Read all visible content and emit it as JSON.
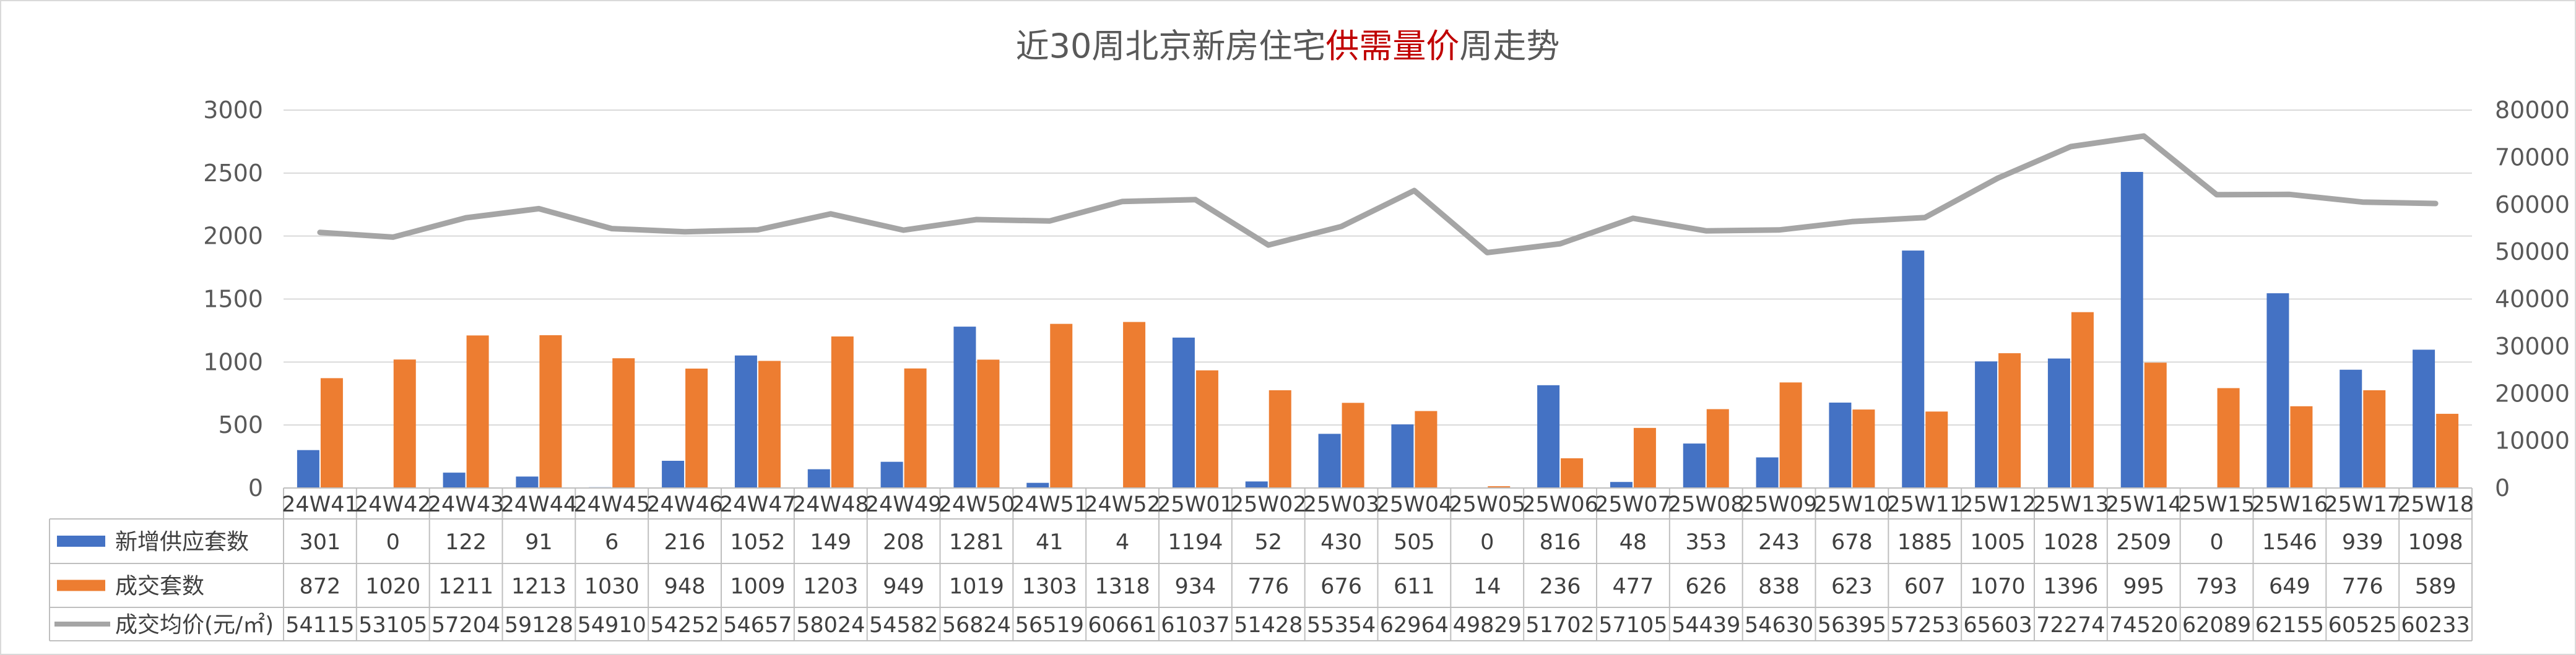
{
  "chart_data": {
    "type": "bar",
    "title_parts": [
      "近30周北京新房住宅",
      "供需量价",
      "周走势"
    ],
    "categories": [
      "24W41",
      "24W42",
      "24W43",
      "24W44",
      "24W45",
      "24W46",
      "24W47",
      "24W48",
      "24W49",
      "24W50",
      "24W51",
      "24W52",
      "25W01",
      "25W02",
      "25W03",
      "25W04",
      "25W05",
      "25W06",
      "25W07",
      "25W08",
      "25W09",
      "25W10",
      "25W11",
      "25W12",
      "25W13",
      "25W14",
      "25W15",
      "25W16",
      "25W17",
      "25W18"
    ],
    "series": [
      {
        "name": "新增供应套数",
        "type": "bar",
        "axis": "left",
        "color": "#4472c4",
        "values": [
          301,
          0,
          122,
          91,
          6,
          216,
          1052,
          149,
          208,
          1281,
          41,
          4,
          1194,
          52,
          430,
          505,
          0,
          816,
          48,
          353,
          243,
          678,
          1885,
          1005,
          1028,
          2509,
          0,
          1546,
          939,
          1098
        ]
      },
      {
        "name": "成交套数",
        "type": "bar",
        "axis": "left",
        "color": "#ed7d31",
        "values": [
          872,
          1020,
          1211,
          1213,
          1030,
          948,
          1009,
          1203,
          949,
          1019,
          1303,
          1318,
          934,
          776,
          676,
          611,
          14,
          236,
          477,
          626,
          838,
          623,
          607,
          1070,
          1396,
          995,
          793,
          649,
          776,
          589
        ]
      },
      {
        "name": "成交均价(元/㎡)",
        "type": "line",
        "axis": "right",
        "color": "#a5a5a5",
        "values": [
          54115,
          53105,
          57204,
          59128,
          54910,
          54252,
          54657,
          58024,
          54582,
          56824,
          56519,
          60661,
          61037,
          51428,
          55354,
          62964,
          49829,
          51702,
          57105,
          54439,
          54630,
          56395,
          57253,
          65603,
          72274,
          74520,
          62089,
          62155,
          60525,
          60233
        ]
      }
    ],
    "y_left": {
      "min": 0,
      "max": 3000,
      "ticks": [
        "0",
        "500",
        "1000",
        "1500",
        "2000",
        "2500",
        "3000"
      ]
    },
    "y_right": {
      "min": 0,
      "max": 80000,
      "ticks": [
        "0",
        "10000",
        "20000",
        "30000",
        "40000",
        "50000",
        "60000",
        "70000",
        "80000"
      ]
    },
    "grid": true,
    "legend": "data-table"
  }
}
